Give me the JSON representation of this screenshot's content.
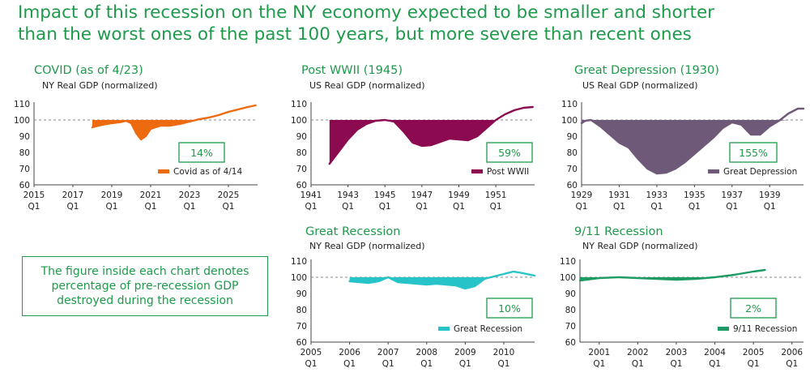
{
  "headline": {
    "line1": "Impact of this recession on the NY economy expected to be smaller and shorter",
    "line2": "than the worst ones of the past 100 years, but more severe than recent ones"
  },
  "note": "The figure inside each chart denotes percentage of pre-recession GDP destroyed during the recession",
  "chart_data": [
    {
      "type": "line",
      "title": "COVID (as of 4/23)",
      "subtitle": "NY Real GDP (normalized)",
      "color": "#ee6a0f",
      "fill_below_100": true,
      "reference_line": 100,
      "xlim": [
        2015,
        2026.5
      ],
      "ylim": [
        60,
        110
      ],
      "yticks": [
        60,
        70,
        80,
        90,
        100,
        110
      ],
      "xticks": [
        {
          "x": 2015,
          "label": "2015",
          "sub": "Q1"
        },
        {
          "x": 2017,
          "label": "2017",
          "sub": "Q1"
        },
        {
          "x": 2019,
          "label": "2019",
          "sub": "Q1"
        },
        {
          "x": 2021,
          "label": "2021",
          "sub": "Q1"
        },
        {
          "x": 2023,
          "label": "2023",
          "sub": "Q1"
        },
        {
          "x": 2025,
          "label": "2025",
          "sub": "Q1"
        }
      ],
      "callout": "14%",
      "series": [
        {
          "name": "Covid as of 4/14",
          "x": [
            2018,
            2018.5,
            2019,
            2019.5,
            2019.75,
            2020,
            2020.25,
            2020.5,
            2020.75,
            2021,
            2021.5,
            2022,
            2022.5,
            2023,
            2023.5,
            2024,
            2024.5,
            2025,
            2025.5,
            2026,
            2026.4
          ],
          "y": [
            95.5,
            97,
            98,
            98.8,
            99.5,
            98,
            92,
            88,
            90,
            94.5,
            96.5,
            96.5,
            97.5,
            99,
            100.5,
            101.5,
            103,
            105,
            106.5,
            108,
            109
          ]
        }
      ]
    },
    {
      "type": "line",
      "title": "Post WWII (1945)",
      "subtitle": "US Real GDP (normalized)",
      "color": "#8b0a50",
      "fill_below_100": true,
      "reference_line": 100,
      "xlim": [
        1941,
        1953.1
      ],
      "ylim": [
        60,
        110
      ],
      "yticks": [
        60,
        70,
        80,
        90,
        100,
        110
      ],
      "xticks": [
        {
          "x": 1941,
          "label": "1941",
          "sub": "Q1"
        },
        {
          "x": 1943,
          "label": "1943",
          "sub": "Q1"
        },
        {
          "x": 1945,
          "label": "1945",
          "sub": "Q1"
        },
        {
          "x": 1947,
          "label": "1947",
          "sub": "Q1"
        },
        {
          "x": 1949,
          "label": "1949",
          "sub": "Q1"
        },
        {
          "x": 1951,
          "label": "1951",
          "sub": "Q1"
        }
      ],
      "callout": "59%",
      "series": [
        {
          "name": "Post WWII",
          "x": [
            1942,
            1942.5,
            1943,
            1943.5,
            1944,
            1944.5,
            1945,
            1945.5,
            1946,
            1946.5,
            1947,
            1947.5,
            1948,
            1948.5,
            1949,
            1949.5,
            1950,
            1950.5,
            1951,
            1951.5,
            1952,
            1952.5,
            1953
          ],
          "y": [
            73,
            80.5,
            88,
            94,
            97.5,
            99.5,
            100,
            99,
            93,
            86,
            84,
            84.5,
            86.5,
            88.5,
            88,
            87.5,
            90,
            95,
            100,
            103.5,
            106,
            107.5,
            108
          ]
        }
      ]
    },
    {
      "type": "line",
      "title": "Great Depression (1930)",
      "subtitle": "US Real GDP (normalized)",
      "color": "#6e5a78",
      "fill_below_100": true,
      "reference_line": 100,
      "xlim": [
        1929,
        1940.8
      ],
      "ylim": [
        60,
        110
      ],
      "yticks": [
        60,
        70,
        80,
        90,
        100,
        110
      ],
      "xticks": [
        {
          "x": 1929,
          "label": "1929",
          "sub": "Q1"
        },
        {
          "x": 1931,
          "label": "1931",
          "sub": "Q1"
        },
        {
          "x": 1933,
          "label": "1933",
          "sub": "Q1"
        },
        {
          "x": 1935,
          "label": "1935",
          "sub": "Q1"
        },
        {
          "x": 1937,
          "label": "1937",
          "sub": "Q1"
        },
        {
          "x": 1939,
          "label": "1939",
          "sub": "Q1"
        }
      ],
      "callout": "155%",
      "series": [
        {
          "name": "Great Depression",
          "x": [
            1929,
            1929.2,
            1929.5,
            1930,
            1930.5,
            1931,
            1931.5,
            1932,
            1932.5,
            1933,
            1933.5,
            1934,
            1934.5,
            1935,
            1935.5,
            1936,
            1936.5,
            1937,
            1937.5,
            1938,
            1938.5,
            1939,
            1939.5,
            1940,
            1940.5,
            1940.8
          ],
          "y": [
            98,
            99.5,
            100,
            96,
            91,
            86,
            83,
            76,
            70,
            67,
            67.5,
            70,
            74,
            79,
            84,
            89,
            95,
            98.5,
            97,
            91,
            91,
            96,
            99.5,
            104,
            107,
            107
          ]
        }
      ]
    },
    {
      "type": "line",
      "title": "Great Recession",
      "subtitle": "NY Real GDP (normalized)",
      "color": "#26c3c9",
      "fill_below_100": true,
      "reference_line": 100,
      "xlim": [
        2005,
        2010.8
      ],
      "ylim": [
        60,
        110
      ],
      "yticks": [
        60,
        70,
        80,
        90,
        100,
        110
      ],
      "xticks": [
        {
          "x": 2005,
          "label": "2005",
          "sub": "Q1"
        },
        {
          "x": 2006,
          "label": "2006",
          "sub": "Q1"
        },
        {
          "x": 2007,
          "label": "2007",
          "sub": "Q1"
        },
        {
          "x": 2008,
          "label": "2008",
          "sub": "Q1"
        },
        {
          "x": 2009,
          "label": "2009",
          "sub": "Q1"
        },
        {
          "x": 2010,
          "label": "2010",
          "sub": "Q1"
        }
      ],
      "callout": "10%",
      "series": [
        {
          "name": "Great Recession",
          "x": [
            2006,
            2006.25,
            2006.5,
            2006.75,
            2007,
            2007.25,
            2007.5,
            2007.75,
            2008,
            2008.25,
            2008.5,
            2008.75,
            2009,
            2009.25,
            2009.5,
            2009.75,
            2010,
            2010.25,
            2010.5,
            2010.8
          ],
          "y": [
            97.5,
            97,
            96.5,
            97.5,
            100,
            97,
            96.5,
            96,
            95.5,
            96,
            95.5,
            95,
            93,
            94.5,
            99,
            100.5,
            102,
            103.5,
            102.5,
            101
          ]
        }
      ]
    },
    {
      "type": "line",
      "title": "9/11 Recession",
      "subtitle": "NY Real GDP (normalized)",
      "color": "#1e9a64",
      "fill_below_100": true,
      "reference_line": 100,
      "xlim": [
        2000.5,
        2006.3
      ],
      "ylim": [
        60,
        110
      ],
      "yticks": [
        60,
        70,
        80,
        90,
        100,
        110
      ],
      "xticks": [
        {
          "x": 2001,
          "label": "2001",
          "sub": "Q1"
        },
        {
          "x": 2002,
          "label": "2002",
          "sub": "Q1"
        },
        {
          "x": 2003,
          "label": "2003",
          "sub": "Q1"
        },
        {
          "x": 2004,
          "label": "2004",
          "sub": "Q1"
        },
        {
          "x": 2005,
          "label": "2005",
          "sub": "Q1"
        },
        {
          "x": 2006,
          "label": "2006",
          "sub": "Q1"
        }
      ],
      "callout": "2%",
      "series": [
        {
          "name": "9/11 Recession",
          "x": [
            2000.5,
            2001,
            2001.5,
            2002,
            2002.5,
            2003,
            2003.5,
            2004,
            2004.5,
            2005,
            2005.3
          ],
          "y": [
            98,
            99.5,
            100,
            99.5,
            99,
            98.5,
            99,
            100,
            101.5,
            103.5,
            104.5
          ]
        }
      ]
    }
  ]
}
